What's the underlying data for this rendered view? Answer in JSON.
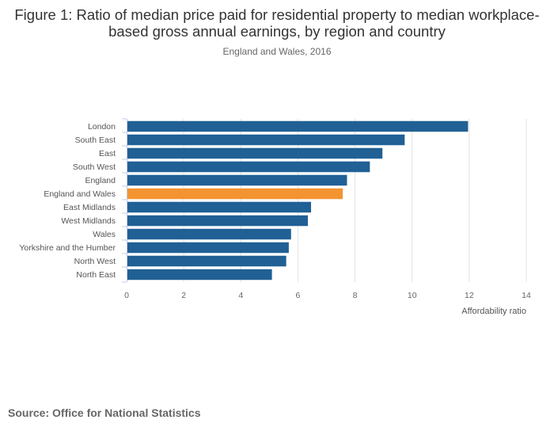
{
  "chart_data": {
    "type": "bar",
    "orientation": "horizontal",
    "title": "Figure 1: Ratio of median price paid for residential property to median workplace-based gross annual earnings, by region and country",
    "subtitle": "England and Wales, 2016",
    "xlabel": "Affordability ratio",
    "ylabel": "",
    "xlim": [
      0,
      14
    ],
    "xticks": [
      0,
      2,
      4,
      6,
      8,
      10,
      12,
      14
    ],
    "grid": true,
    "categories": [
      "London",
      "South East",
      "East",
      "South West",
      "England",
      "England and Wales",
      "East Midlands",
      "West Midlands",
      "Wales",
      "Yorkshire and the Humber",
      "North West",
      "North East"
    ],
    "values": [
      11.96,
      9.74,
      8.96,
      8.52,
      7.72,
      7.57,
      6.46,
      6.35,
      5.76,
      5.68,
      5.59,
      5.09
    ],
    "highlight": "England and Wales",
    "colors": {
      "bar": "#206095",
      "highlight": "#F39431",
      "grid": "#e2e2e2",
      "axis": "#c5cde6"
    }
  },
  "source": "Source: Office for National Statistics"
}
